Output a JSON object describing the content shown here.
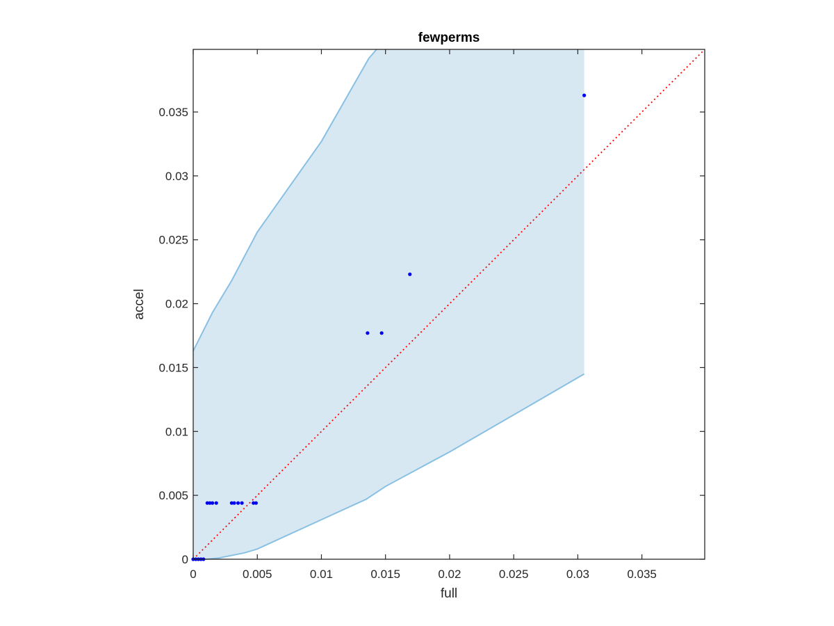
{
  "chart_data": {
    "type": "scatter",
    "title": "fewperms",
    "xlabel": "full",
    "ylabel": "accel",
    "xlim": [
      0,
      0.0399
    ],
    "ylim": [
      0,
      0.0399
    ],
    "xticks": [
      0,
      0.005,
      0.01,
      0.015,
      0.02,
      0.025,
      0.03,
      0.035
    ],
    "xtick_labels": [
      "0",
      "0.005",
      "0.01",
      "0.015",
      "0.02",
      "0.025",
      "0.03",
      "0.035"
    ],
    "yticks": [
      0,
      0.005,
      0.01,
      0.015,
      0.02,
      0.025,
      0.03,
      0.035
    ],
    "ytick_labels": [
      "0",
      "0.005",
      "0.01",
      "0.015",
      "0.02",
      "0.025",
      "0.03",
      "0.035"
    ],
    "grid": false,
    "colors": {
      "points": "#0000ee",
      "band_fill": "#d8e8f3",
      "band_edge": "#88c0e4",
      "reference_line": "#ff0000",
      "axes": "#262626"
    },
    "scatter_points": [
      {
        "x": 0.0,
        "y": 0.0
      },
      {
        "x": 0.0002,
        "y": 0.0
      },
      {
        "x": 0.0004,
        "y": 0.0
      },
      {
        "x": 0.0006,
        "y": 0.0
      },
      {
        "x": 0.0008,
        "y": 0.0
      },
      {
        "x": 0.0011,
        "y": 0.0044
      },
      {
        "x": 0.0013,
        "y": 0.0044
      },
      {
        "x": 0.0015,
        "y": 0.0044
      },
      {
        "x": 0.0018,
        "y": 0.0044
      },
      {
        "x": 0.003,
        "y": 0.0044
      },
      {
        "x": 0.0032,
        "y": 0.0044
      },
      {
        "x": 0.0035,
        "y": 0.0044
      },
      {
        "x": 0.0038,
        "y": 0.0044
      },
      {
        "x": 0.0047,
        "y": 0.0044
      },
      {
        "x": 0.0049,
        "y": 0.0044
      },
      {
        "x": 0.0136,
        "y": 0.0177
      },
      {
        "x": 0.0147,
        "y": 0.0177
      },
      {
        "x": 0.0169,
        "y": 0.0223
      },
      {
        "x": 0.0305,
        "y": 0.0363
      }
    ],
    "band_upper": [
      {
        "x": 0.0,
        "y": 0.0163
      },
      {
        "x": 0.0005,
        "y": 0.0173
      },
      {
        "x": 0.0015,
        "y": 0.0193
      },
      {
        "x": 0.003,
        "y": 0.0218
      },
      {
        "x": 0.005,
        "y": 0.0256
      },
      {
        "x": 0.01,
        "y": 0.0327
      },
      {
        "x": 0.0137,
        "y": 0.0392
      },
      {
        "x": 0.0143,
        "y": 0.0399
      }
    ],
    "band_right_x": 0.0305,
    "band_lower": [
      {
        "x": 0.0305,
        "y": 0.0145
      },
      {
        "x": 0.025,
        "y": 0.0113
      },
      {
        "x": 0.02,
        "y": 0.0084
      },
      {
        "x": 0.015,
        "y": 0.0057
      },
      {
        "x": 0.0135,
        "y": 0.0047
      },
      {
        "x": 0.01,
        "y": 0.0031
      },
      {
        "x": 0.005,
        "y": 0.0008
      },
      {
        "x": 0.004,
        "y": 0.0005
      },
      {
        "x": 0.002,
        "y": 0.0001
      },
      {
        "x": 0.001,
        "y": 0.0
      },
      {
        "x": 0.0,
        "y": 0.0
      }
    ],
    "reference_line": {
      "style": "dotted",
      "from": [
        0,
        0
      ],
      "to": [
        0.0399,
        0.0399
      ]
    }
  }
}
